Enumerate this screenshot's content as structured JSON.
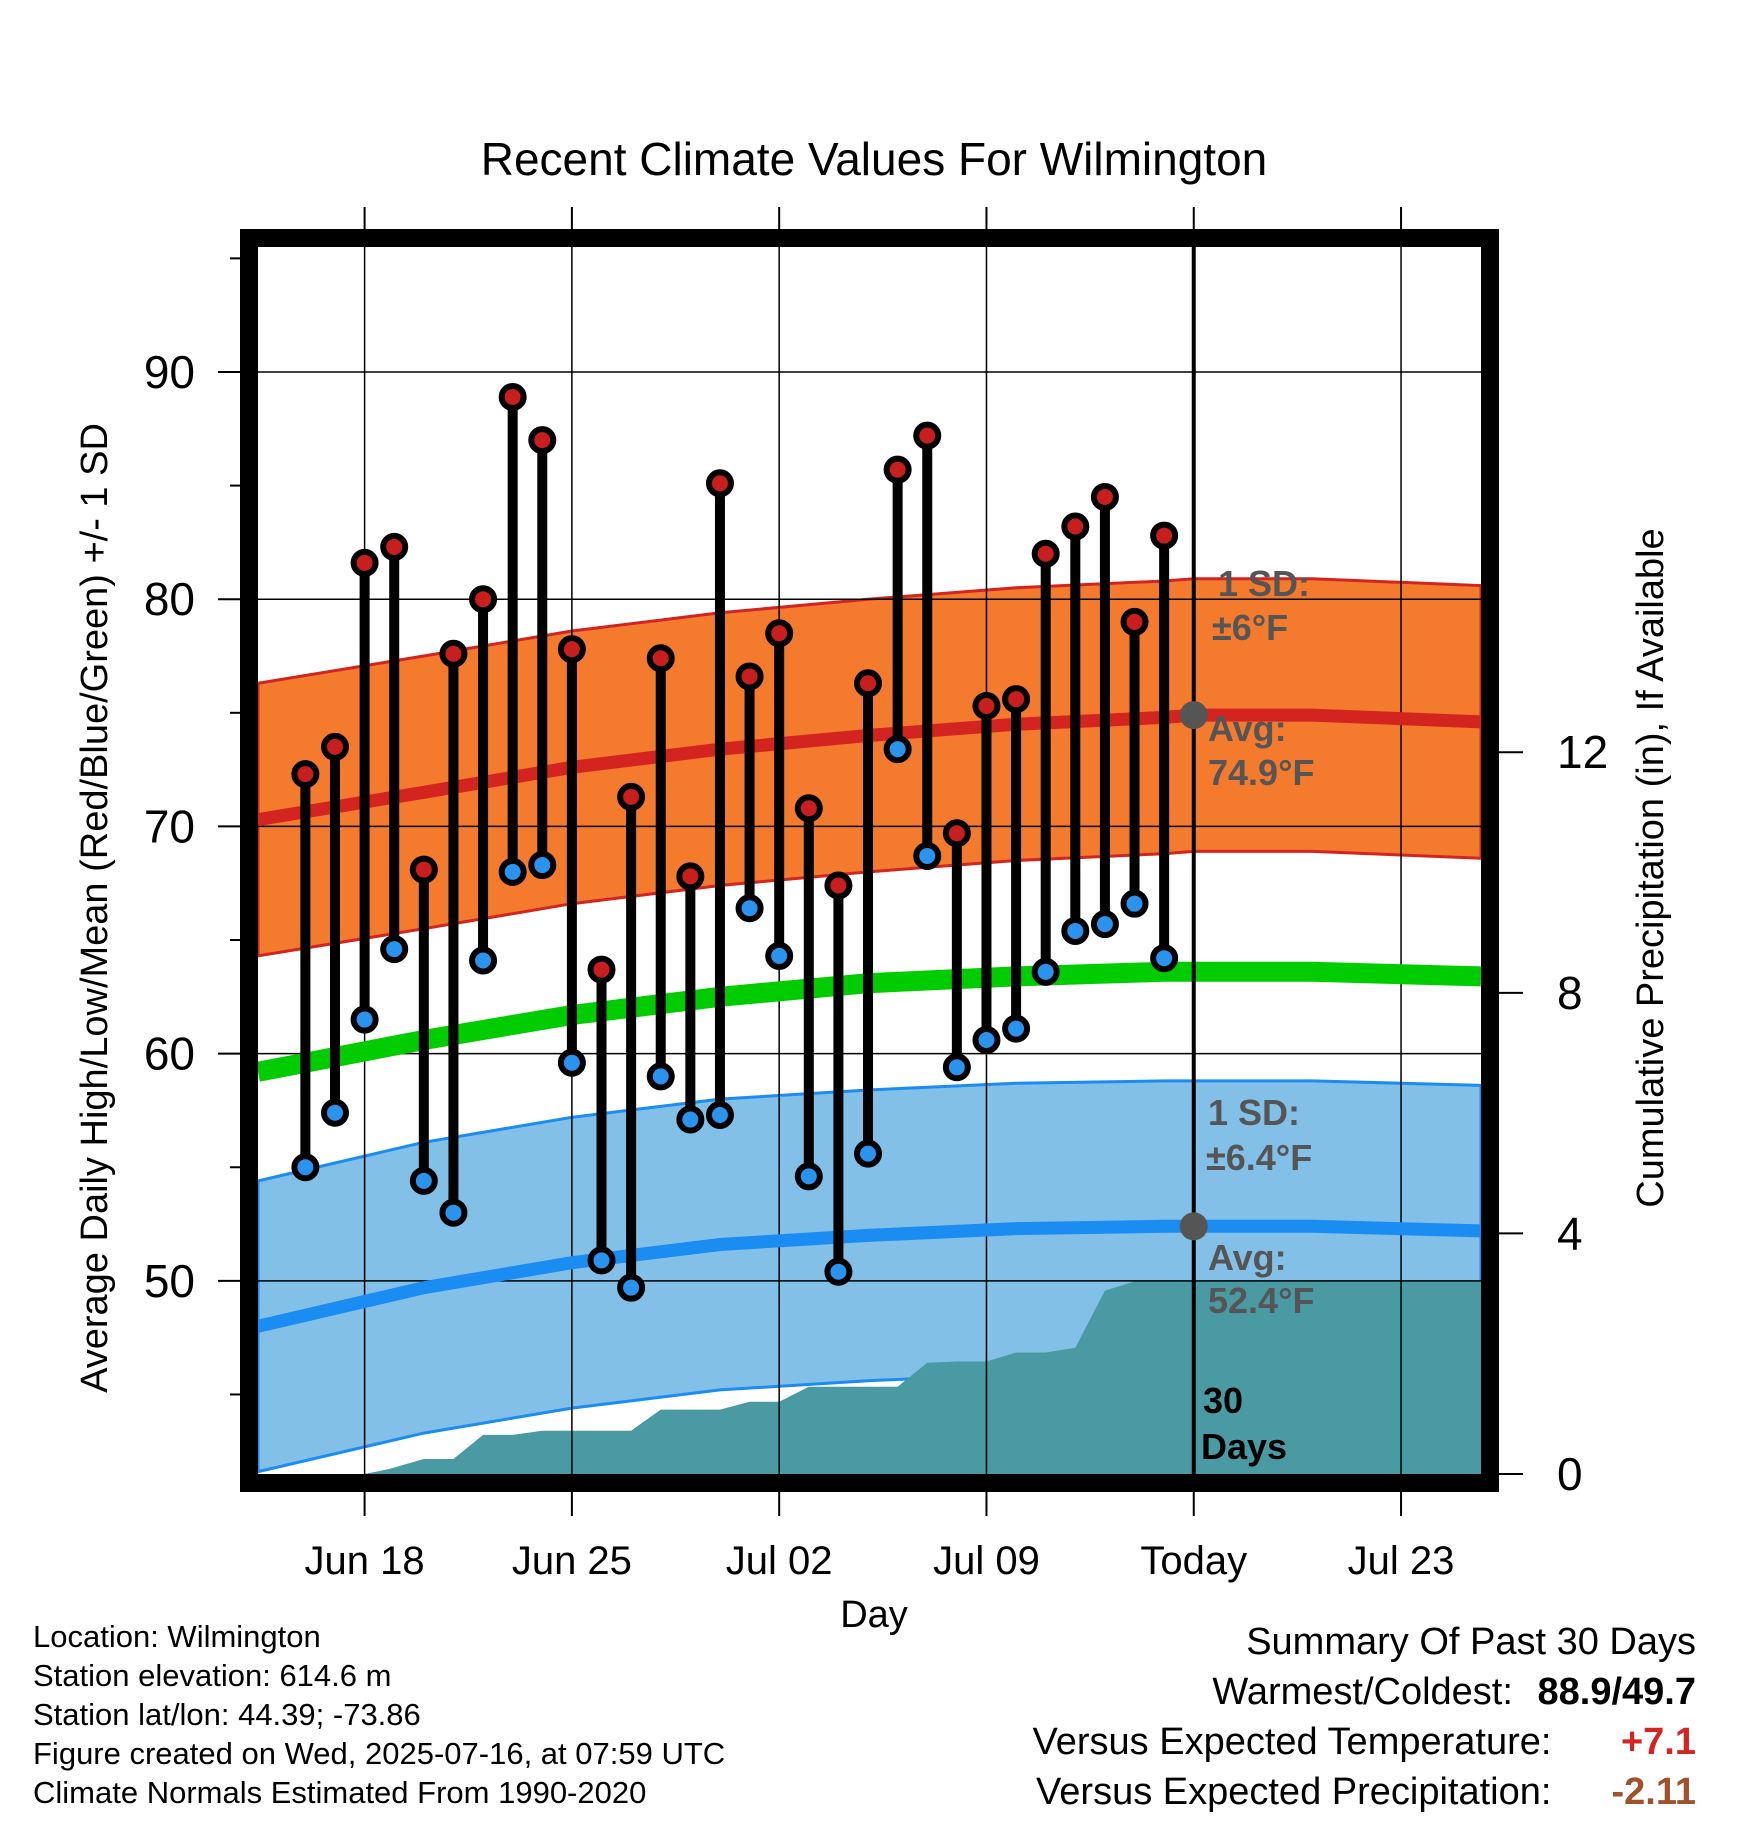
{
  "chart_data": {
    "type": "line",
    "title": "Recent Climate Values For Wilmington",
    "xlabel": "Day",
    "ylabel": "Average Daily High/Low/Mean (Red/Blue/Green) +/- 1 SD",
    "y2label": "Cumulative Precipitation (in), If Available",
    "x_ticks": [
      "Jun 18",
      "Jun 25",
      "Jul 02",
      "Jul 09",
      "Today",
      "Jul 23"
    ],
    "x_range_days": [
      -31.6,
      9.7
    ],
    "x_unit": "days relative to Today (Jul 16)",
    "ylim": [
      41.5,
      95.5
    ],
    "y_ticks": [
      50,
      60,
      70,
      80,
      90
    ],
    "y2_ticks": [
      0,
      4,
      8,
      12
    ],
    "y2lim": [
      0,
      20.4
    ],
    "grid": true,
    "today_line": true,
    "normals": {
      "days": [
        -31.6,
        -26,
        -21,
        -16,
        -11,
        -6,
        -1,
        0,
        4,
        9.7
      ],
      "avg_high": [
        70.3,
        71.5,
        72.6,
        73.4,
        74.0,
        74.5,
        74.8,
        74.9,
        74.9,
        74.6
      ],
      "avg_low": [
        48.0,
        49.7,
        50.8,
        51.6,
        52.0,
        52.3,
        52.4,
        52.4,
        52.4,
        52.2
      ],
      "avg_mean": [
        59.2,
        60.6,
        61.7,
        62.5,
        63.1,
        63.4,
        63.6,
        63.6,
        63.6,
        63.4
      ],
      "high_sd": 6,
      "low_sd": 6.4
    },
    "observations": {
      "days": [
        -30,
        -29,
        -28,
        -27,
        -26,
        -25,
        -24,
        -23,
        -22,
        -21,
        -20,
        -19,
        -18,
        -17,
        -16,
        -15,
        -14,
        -13,
        -12,
        -11,
        -10,
        -9,
        -8,
        -7,
        -6,
        -5,
        -4,
        -3,
        -2,
        -1
      ],
      "highs": [
        72.3,
        73.5,
        81.6,
        82.3,
        68.1,
        77.6,
        80.0,
        88.9,
        87.0,
        77.8,
        63.7,
        71.3,
        77.4,
        67.8,
        85.1,
        76.6,
        78.5,
        70.8,
        67.4,
        76.3,
        85.7,
        87.2,
        69.7,
        75.3,
        75.6,
        82.0,
        83.2,
        84.5,
        79.0,
        82.8
      ],
      "lows": [
        55.0,
        57.4,
        61.5,
        64.6,
        54.4,
        53.0,
        64.1,
        68.0,
        68.3,
        59.6,
        50.9,
        49.7,
        59.0,
        57.1,
        57.3,
        66.4,
        64.3,
        54.6,
        50.4,
        55.6,
        73.4,
        68.7,
        59.4,
        60.6,
        61.1,
        63.6,
        65.4,
        65.7,
        66.6,
        64.2
      ]
    },
    "precipitation": {
      "days": [
        -31.6,
        -28,
        -27.2,
        -26,
        -25,
        -24,
        -23,
        -22,
        -21,
        -20,
        -19,
        -18,
        -17,
        -16,
        -15,
        -14,
        -13,
        -12,
        -11,
        -10,
        -9,
        -8,
        -7,
        -6,
        -5,
        -4,
        -3,
        -2,
        -1,
        0,
        9.7
      ],
      "cumulative_in": [
        0,
        0,
        0.08,
        0.25,
        0.25,
        0.65,
        0.65,
        0.72,
        0.72,
        0.72,
        0.72,
        1.07,
        1.07,
        1.07,
        1.2,
        1.2,
        1.45,
        1.45,
        1.45,
        1.45,
        1.85,
        1.87,
        1.87,
        2.02,
        2.02,
        2.1,
        3.05,
        3.2,
        3.2,
        3.2,
        3.2
      ]
    },
    "annotations": {
      "high_sd_label": "1 SD:",
      "high_sd_value": "±6°F",
      "high_avg_label": "Avg:",
      "high_avg_value": "74.9°F",
      "low_sd_label": "1 SD:",
      "low_sd_value": "±6.4°F",
      "low_avg_label": "Avg:",
      "low_avg_value": "52.4°F",
      "days_count": "30",
      "days_word": "Days"
    },
    "colors": {
      "high_band": "#f47a2e",
      "high_line": "#d32420",
      "low_band": "#82c0e7",
      "low_line": "#1a8cf2",
      "mean_line": "#00cc00",
      "precip": "#4a9aa3",
      "high_marker": "#c81e1e",
      "low_marker": "#2a93ee",
      "label_gray": "#555555"
    }
  },
  "footer": {
    "location": "Location: Wilmington",
    "elevation": "Station elevation: 614.6 m",
    "latlon": "Station lat/lon: 44.39; -73.86",
    "created": "Figure created on Wed, 2025-07-16, at 07:59 UTC",
    "normals": "Climate Normals Estimated From 1990-2020"
  },
  "summary": {
    "title": "Summary Of Past 30 Days",
    "warm_cold_label": "Warmest/Coldest:",
    "warmest": "88.9",
    "separator": "/",
    "coldest": "49.7",
    "temp_label": "Versus Expected Temperature:",
    "temp_value": "+7.1",
    "temp_color": "#d32420",
    "precip_label": "Versus Expected Precipitation:",
    "precip_value": "-2.11",
    "precip_color": "#a0522d"
  }
}
